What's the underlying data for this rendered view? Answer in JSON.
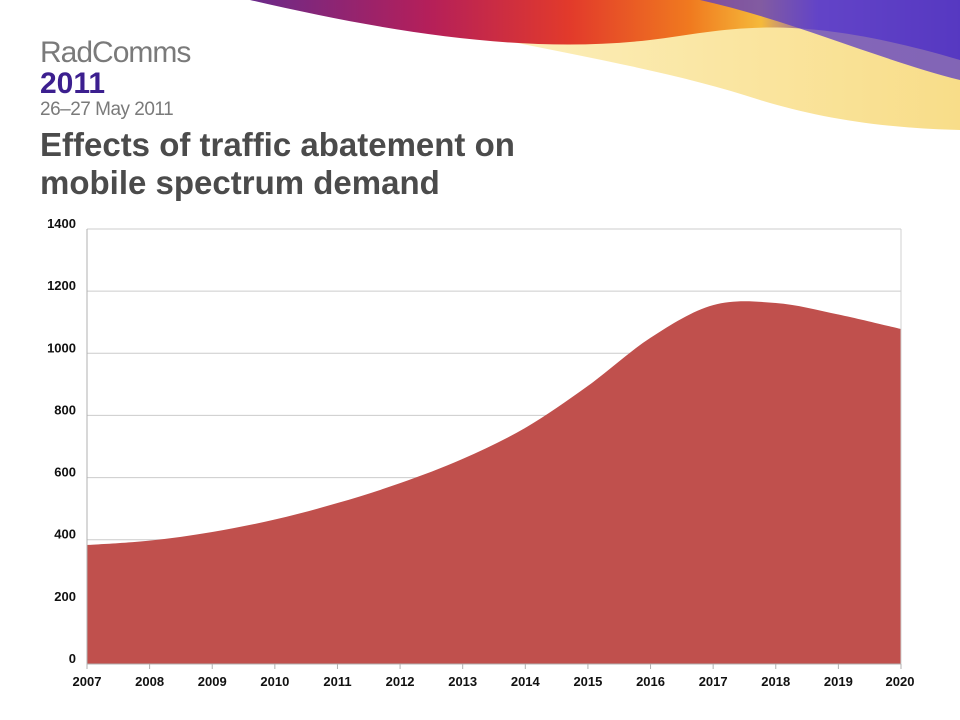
{
  "header": {
    "brand": "RadComms",
    "year": "2011",
    "dates": "26–27 May 2011"
  },
  "slide": {
    "title_line1": "Effects of traffic abatement on",
    "title_line2": "mobile spectrum demand"
  },
  "colors": {
    "area": "#c0504d",
    "grid": "#cccccc",
    "title": "#4b4b4b",
    "brand_year": "#3c1f8f"
  },
  "chart_data": {
    "type": "area",
    "title": "",
    "xlabel": "",
    "ylabel": "",
    "x": [
      2007,
      2008,
      2009,
      2010,
      2011,
      2012,
      2013,
      2014,
      2015,
      2016,
      2017,
      2018,
      2019,
      2020
    ],
    "series": [
      {
        "values": [
          383,
          397,
          425,
          465,
          518,
          582,
          660,
          760,
          895,
          1050,
          1155,
          1162,
          1125,
          1078
        ]
      }
    ],
    "ylim": [
      0,
      1400
    ],
    "yticks": [
      0,
      200,
      400,
      600,
      800,
      1000,
      1200,
      1400
    ],
    "xticks": [
      "2007",
      "2008",
      "2009",
      "2010",
      "2011",
      "2012",
      "2013",
      "2014",
      "2015",
      "2016",
      "2017",
      "2018",
      "2019",
      "2020"
    ],
    "grid": true,
    "legend": "none"
  }
}
